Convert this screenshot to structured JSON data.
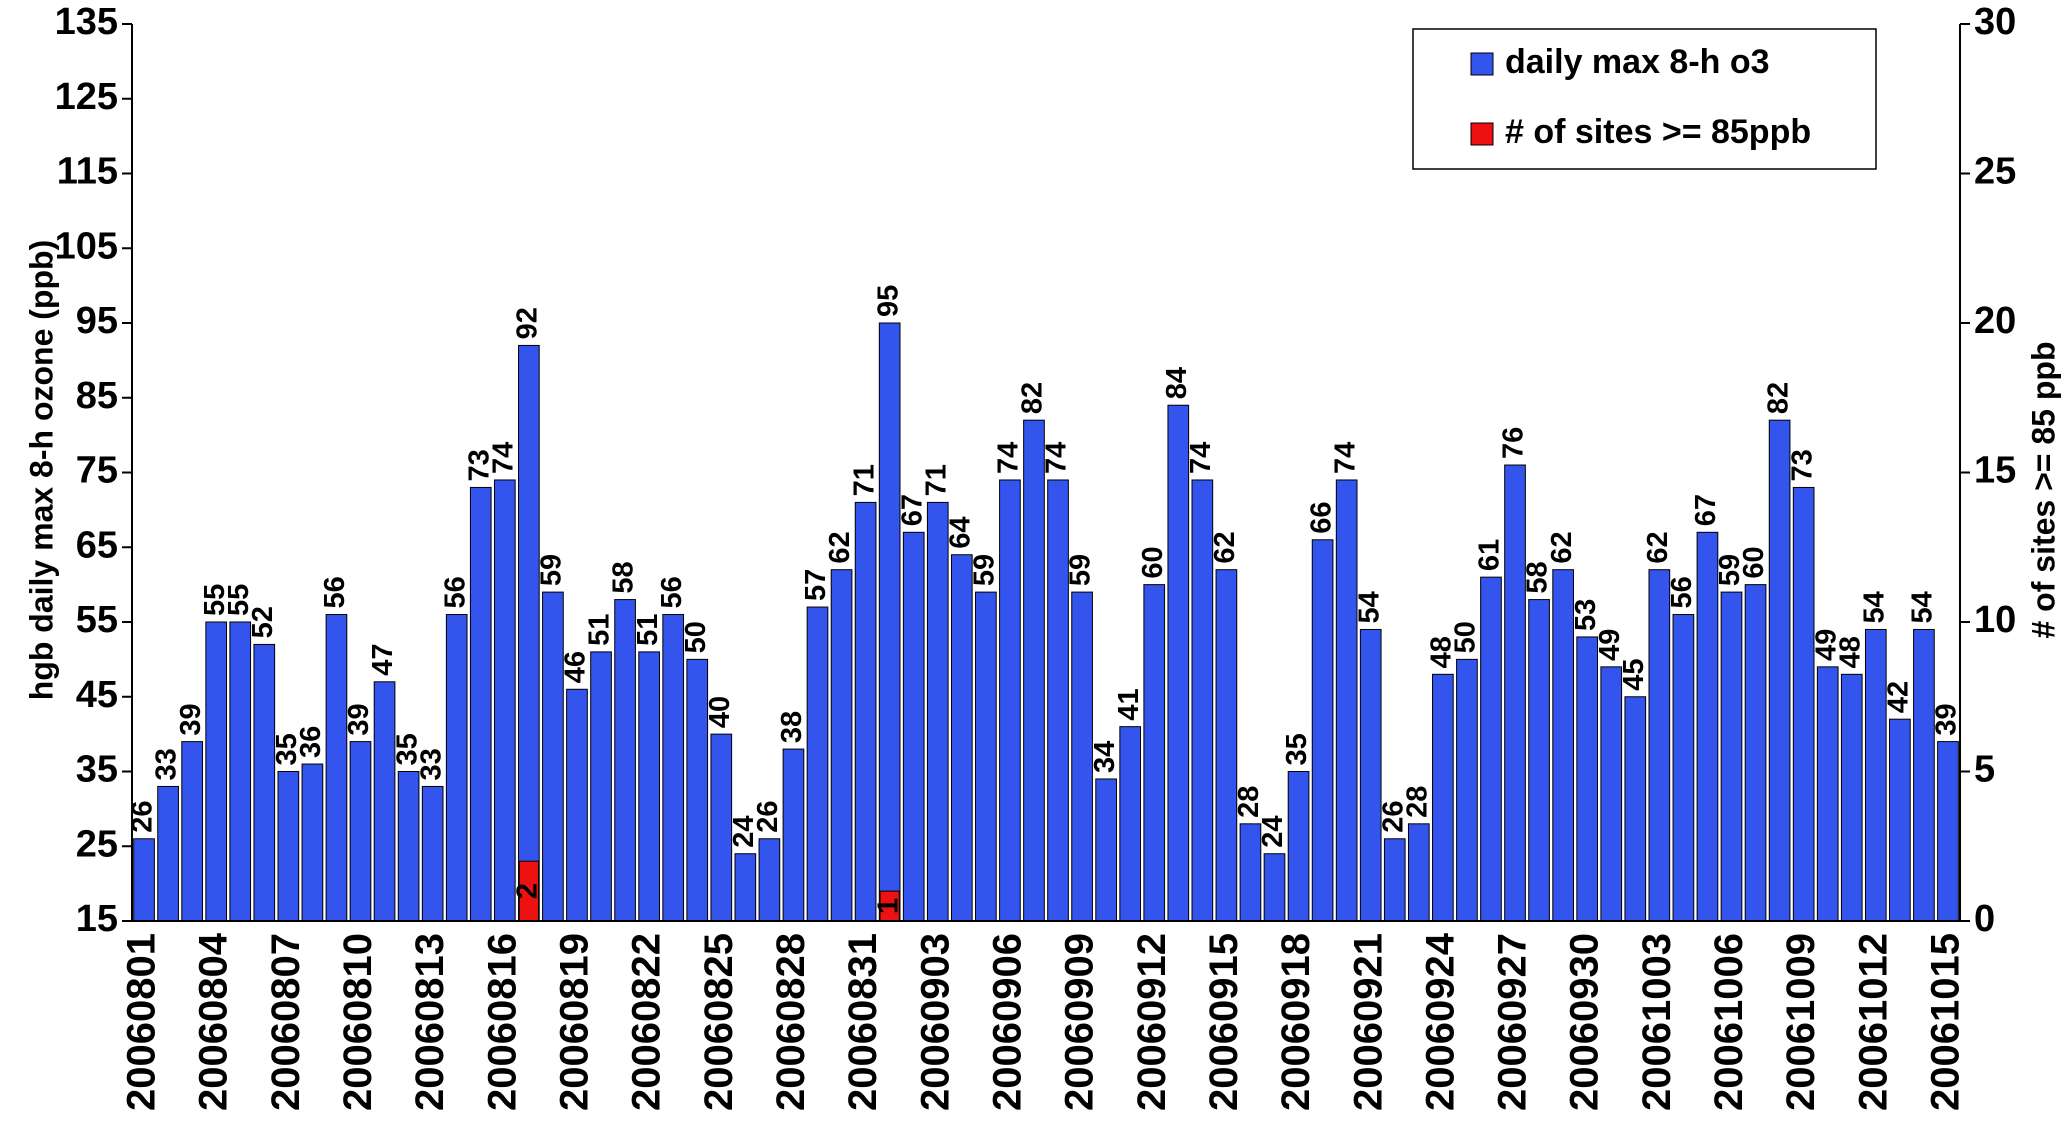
{
  "chart_data": {
    "type": "bar",
    "y_label": "hgb daily max 8-h ozone (ppb)",
    "y2_label": "# of sites >= 85 ppb",
    "categories": [
      "20060801",
      null,
      null,
      "20060804",
      null,
      null,
      "20060807",
      null,
      null,
      "20060810",
      null,
      null,
      "20060813",
      null,
      null,
      "20060816",
      null,
      null,
      "20060819",
      null,
      null,
      "20060822",
      null,
      null,
      "20060825",
      null,
      null,
      "20060828",
      null,
      null,
      "20060831",
      null,
      null,
      "20060903",
      null,
      null,
      "20060906",
      null,
      null,
      "20060909",
      null,
      null,
      "20060912",
      null,
      null,
      "20060915",
      null,
      null,
      "20060918",
      null,
      null,
      "20060921",
      null,
      null,
      "20060924",
      null,
      null,
      "20060927",
      null,
      null,
      "20060930",
      null,
      null,
      "20061003",
      null,
      null,
      "20061006",
      null,
      null,
      "20061009",
      null,
      null,
      "20061012",
      null,
      null,
      "20061015"
    ],
    "series": [
      {
        "name": "daily max 8-h o3",
        "color": "#3355ee",
        "axis": "y",
        "values": [
          26,
          33,
          39,
          55,
          55,
          52,
          35,
          36,
          56,
          39,
          47,
          35,
          33,
          56,
          73,
          74,
          92,
          59,
          46,
          51,
          58,
          51,
          56,
          50,
          40,
          24,
          26,
          38,
          57,
          62,
          71,
          95,
          67,
          71,
          64,
          59,
          74,
          82,
          74,
          59,
          34,
          41,
          60,
          84,
          74,
          62,
          28,
          24,
          35,
          66,
          74,
          54,
          26,
          28,
          48,
          50,
          61,
          76,
          58,
          62,
          53,
          49,
          45,
          62,
          56,
          67,
          59,
          60,
          82,
          73,
          49,
          48,
          54,
          42,
          54,
          39
        ]
      },
      {
        "name": "# of sites >= 85ppb",
        "color": "#ee1111",
        "axis": "y2",
        "values": [
          0,
          0,
          0,
          0,
          0,
          0,
          0,
          0,
          0,
          0,
          0,
          0,
          0,
          0,
          0,
          0,
          2,
          0,
          0,
          0,
          0,
          0,
          0,
          0,
          0,
          0,
          0,
          0,
          0,
          0,
          0,
          1,
          0,
          0,
          0,
          0,
          0,
          0,
          0,
          0,
          0,
          0,
          0,
          0,
          0,
          0,
          0,
          0,
          0,
          0,
          0,
          0,
          0,
          0,
          0,
          0,
          0,
          0,
          0,
          0,
          0,
          0,
          0,
          0,
          0,
          0,
          0,
          0,
          0,
          0,
          0,
          0,
          0,
          0,
          0,
          0
        ]
      }
    ],
    "ylim": [
      15,
      135
    ],
    "yticks": [
      15,
      25,
      35,
      45,
      55,
      65,
      75,
      85,
      95,
      105,
      115,
      125,
      135
    ],
    "y2lim": [
      0,
      30
    ],
    "y2ticks": [
      0,
      5,
      10,
      15,
      20,
      25,
      30
    ],
    "grid": false,
    "legend": "upper right"
  }
}
